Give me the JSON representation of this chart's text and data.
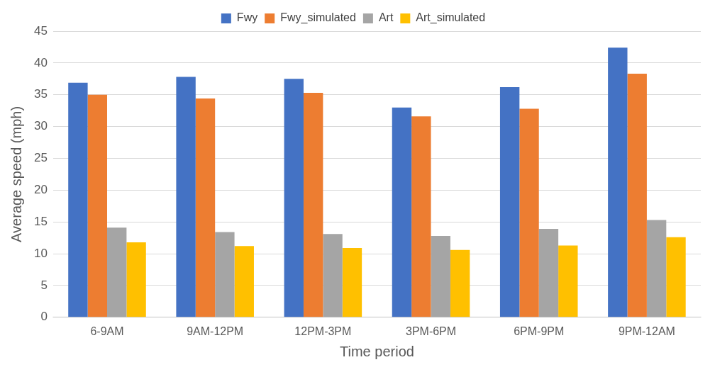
{
  "chart_data": {
    "type": "bar",
    "xlabel": "Time period",
    "ylabel": "Average speed (mph)",
    "categories": [
      "6-9AM",
      "9AM-12PM",
      "12PM-3PM",
      "3PM-6PM",
      "6PM-9PM",
      "9PM-12AM"
    ],
    "series": [
      {
        "name": "Fwy",
        "color": "#4472c4",
        "values": [
          36.9,
          37.8,
          37.5,
          33.0,
          36.2,
          42.4
        ]
      },
      {
        "name": "Fwy_simulated",
        "color": "#ed7d31",
        "values": [
          35.0,
          34.4,
          35.3,
          31.6,
          32.8,
          38.3
        ]
      },
      {
        "name": "Art",
        "color": "#a5a5a5",
        "values": [
          14.1,
          13.4,
          13.1,
          12.8,
          13.9,
          15.3
        ]
      },
      {
        "name": "Art_simulated",
        "color": "#ffc000",
        "values": [
          11.8,
          11.2,
          10.9,
          10.6,
          11.3,
          12.6
        ]
      }
    ],
    "ylim": [
      0,
      45
    ],
    "yticks": [
      0,
      5,
      10,
      15,
      20,
      25,
      30,
      35,
      40,
      45
    ],
    "grid": "y",
    "legend": "top"
  }
}
